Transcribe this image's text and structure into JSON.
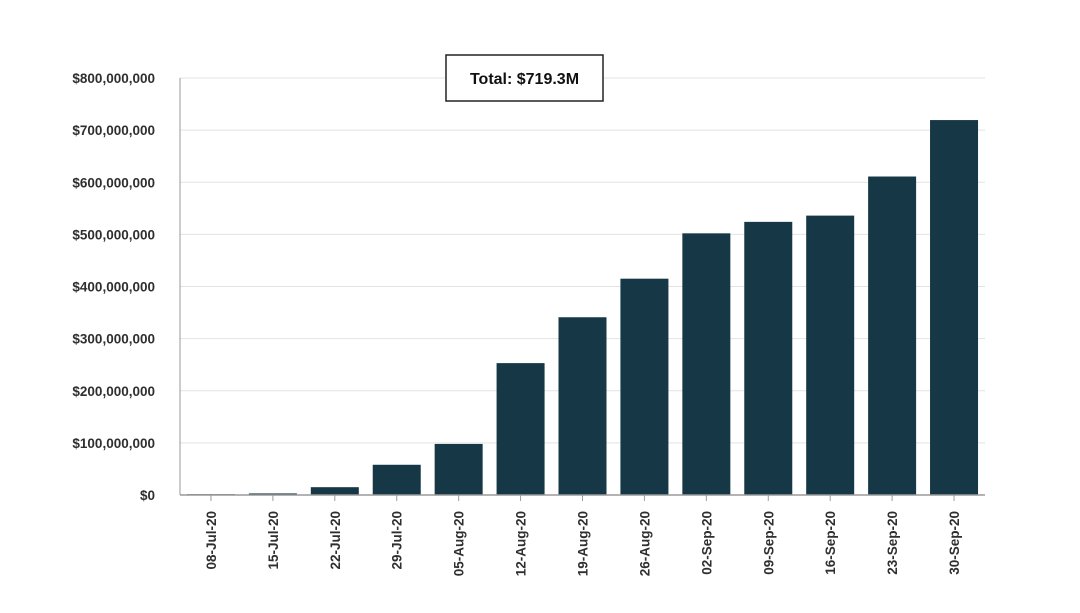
{
  "chart_data": {
    "type": "bar",
    "categories": [
      "08-Jul-20",
      "15-Jul-20",
      "22-Jul-20",
      "29-Jul-20",
      "05-Aug-20",
      "12-Aug-20",
      "19-Aug-20",
      "26-Aug-20",
      "02-Sep-20",
      "09-Sep-20",
      "16-Sep-20",
      "23-Sep-20",
      "30-Sep-20"
    ],
    "values": [
      1000000,
      3000000,
      15000000,
      58000000,
      98000000,
      253000000,
      341000000,
      415000000,
      502000000,
      524000000,
      536000000,
      611000000,
      719300000
    ],
    "yticks": [
      0,
      100000000,
      200000000,
      300000000,
      400000000,
      500000000,
      600000000,
      700000000,
      800000000
    ],
    "ytick_labels": [
      "$0",
      "$100,000,000",
      "$200,000,000",
      "$300,000,000",
      "$400,000,000",
      "$500,000,000",
      "$600,000,000",
      "$700,000,000",
      "$800,000,000"
    ],
    "ylim": [
      0,
      800000000
    ],
    "grid": true,
    "annotation": "Total: $719.3M",
    "bar_color": "#163746",
    "grid_color": "#e3e3e3",
    "axis_color": "#9a9a9a"
  }
}
